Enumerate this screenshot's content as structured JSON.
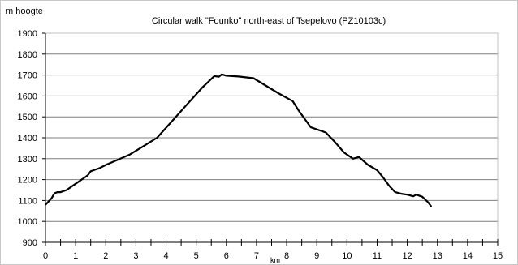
{
  "chart_data": {
    "type": "line",
    "title": "Circular walk \"Founko\" north-east of Tsepelovo (PZ10103c)",
    "xlabel": "km",
    "ylabel": "m hoogte",
    "xlim": [
      0,
      15
    ],
    "ylim": [
      900,
      1900
    ],
    "x_ticks": [
      "0",
      "1",
      "2",
      "3",
      "4",
      "5",
      "6",
      "7",
      "8",
      "9",
      "10",
      "11",
      "12",
      "13",
      "14",
      "15"
    ],
    "y_ticks": [
      "900",
      "1000",
      "1100",
      "1200",
      "1300",
      "1400",
      "1500",
      "1600",
      "1700",
      "1800",
      "1900"
    ],
    "grid": "horizontal",
    "colors": {
      "line": "#000000",
      "grid": "#7f7f7f",
      "axis": "#000000"
    },
    "series": [
      {
        "x": [
          0,
          0.1,
          0.2,
          0.3,
          0.4,
          0.5,
          0.7,
          0.9,
          1.1,
          1.3,
          1.4,
          1.5,
          1.6,
          1.8,
          2.0,
          2.4,
          2.8,
          3.2,
          3.7,
          4.2,
          4.7,
          5.2,
          5.6,
          5.75,
          5.85,
          6.0,
          6.4,
          6.9,
          7.3,
          7.7,
          8.2,
          8.4,
          8.8,
          9.3,
          9.6,
          9.9,
          10.2,
          10.4,
          10.5,
          10.7,
          11.0,
          11.2,
          11.4,
          11.6,
          11.8,
          12.0,
          12.2,
          12.3,
          12.5,
          12.7,
          12.8
        ],
        "y": [
          1080,
          1095,
          1110,
          1135,
          1140,
          1140,
          1150,
          1170,
          1190,
          1210,
          1220,
          1240,
          1245,
          1255,
          1270,
          1295,
          1320,
          1355,
          1400,
          1480,
          1560,
          1640,
          1695,
          1692,
          1703,
          1697,
          1693,
          1685,
          1650,
          1615,
          1575,
          1530,
          1450,
          1425,
          1380,
          1330,
          1300,
          1308,
          1295,
          1270,
          1245,
          1210,
          1170,
          1140,
          1132,
          1128,
          1120,
          1128,
          1118,
          1090,
          1070
        ]
      }
    ]
  }
}
